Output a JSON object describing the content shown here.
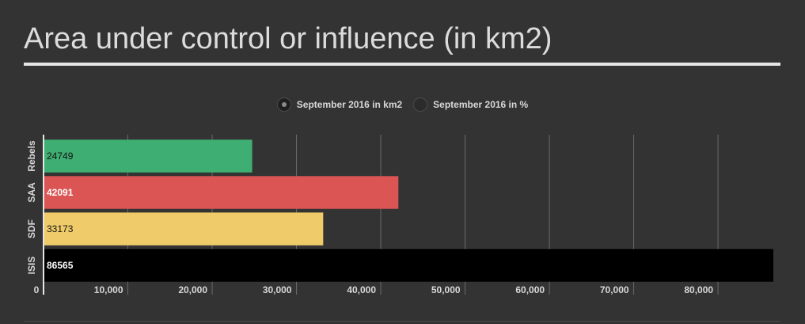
{
  "title": "Area under control or influence (in km2)",
  "legend": [
    {
      "label": "September 2016 in km2",
      "active": true
    },
    {
      "label": "September 2016 in %",
      "active": false
    }
  ],
  "chart_data": {
    "type": "bar",
    "orientation": "horizontal",
    "title": "Area under control or influence (in km2)",
    "categories": [
      "Rebels",
      "SAA",
      "SDF",
      "ISIS"
    ],
    "series": [
      {
        "name": "September 2016 in km2",
        "values": [
          24749,
          42091,
          33173,
          86565
        ]
      }
    ],
    "data_labels": [
      "24749",
      "42091",
      "33173",
      "86565"
    ],
    "bar_colors": [
      "#3fae72",
      "#dc5555",
      "#efcb6a",
      "#000000"
    ],
    "label_colors": [
      "#111111",
      "#ffffff",
      "#111111",
      "#ffffff"
    ],
    "x_ticks": [
      0,
      10000,
      20000,
      30000,
      40000,
      50000,
      60000,
      70000,
      80000
    ],
    "x_tick_labels": [
      "0",
      "10,000",
      "20,000",
      "30,000",
      "40,000",
      "50,000",
      "60,000",
      "70,000",
      "80,000"
    ],
    "xlim": [
      0,
      86565
    ],
    "grid": true,
    "legend_position": "top-center"
  }
}
